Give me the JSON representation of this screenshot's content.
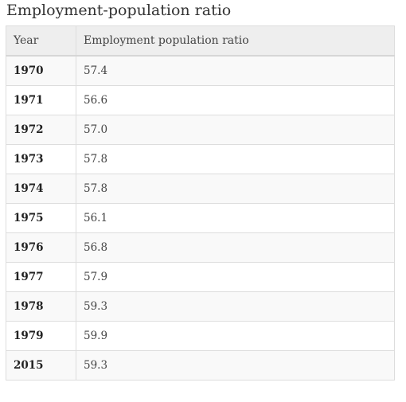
{
  "title": "Employment-population ratio",
  "table": {
    "headers": [
      "Year",
      "Employment population ratio"
    ],
    "rows": [
      [
        "1970",
        "57.4"
      ],
      [
        "1971",
        "56.6"
      ],
      [
        "1972",
        "57.0"
      ],
      [
        "1973",
        "57.8"
      ],
      [
        "1974",
        "57.8"
      ],
      [
        "1975",
        "56.1"
      ],
      [
        "1976",
        "56.8"
      ],
      [
        "1977",
        "57.9"
      ],
      [
        "1978",
        "59.3"
      ],
      [
        "1979",
        "59.9"
      ],
      [
        "2015",
        "59.3"
      ]
    ]
  }
}
